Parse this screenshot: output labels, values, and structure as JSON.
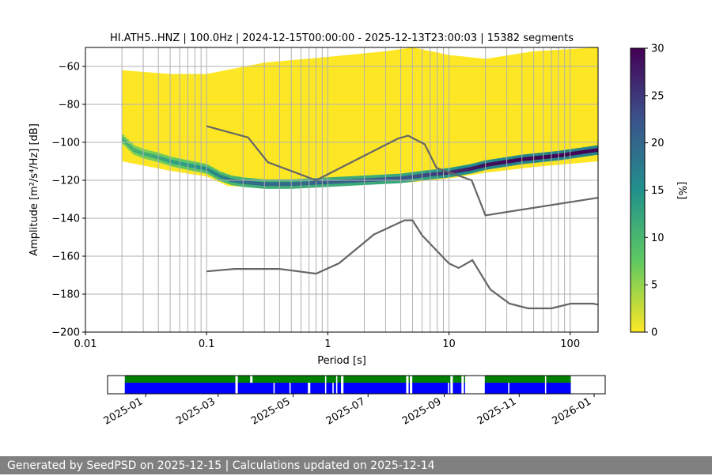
{
  "title": "HI.ATH5..HNZ | 100.0Hz | 2024-12-15T00:00:00 - 2025-12-13T23:00:03 | 15382 segments",
  "footer": "Generated by SeedPSD on 2025-12-15 | Calculations updated on 2025-12-14",
  "colors": {
    "noise_model": "#666666",
    "grid": "#b0b0b0",
    "availability_upper": "#008000",
    "availability_lower": "#0000ff"
  },
  "chart_data": [
    {
      "type": "heatmap",
      "title": "HI.ATH5..HNZ | 100.0Hz | 2024-12-15T00:00:00 - 2025-12-13T23:00:03 | 15382 segments",
      "xlabel": "Period [s]",
      "ylabel": "Amplitude [m²/s⁴/Hz] [dB]",
      "x_scale": "log",
      "xlim": [
        0.01,
        170
      ],
      "ylim": [
        -200,
        -50
      ],
      "x_ticks": [
        {
          "value": 0.01,
          "label": "0.01"
        },
        {
          "value": 0.1,
          "label": "0.1"
        },
        {
          "value": 1,
          "label": "1"
        },
        {
          "value": 10,
          "label": "10"
        },
        {
          "value": 100,
          "label": "100"
        }
      ],
      "y_ticks": [
        {
          "value": -60,
          "label": "−60"
        },
        {
          "value": -80,
          "label": "−80"
        },
        {
          "value": -100,
          "label": "−100"
        },
        {
          "value": -120,
          "label": "−120"
        },
        {
          "value": -140,
          "label": "−140"
        },
        {
          "value": -160,
          "label": "−160"
        },
        {
          "value": -180,
          "label": "−180"
        },
        {
          "value": -200,
          "label": "−200"
        }
      ],
      "grid_periods": [
        0.02,
        0.03,
        0.04,
        0.05,
        0.06,
        0.07,
        0.08,
        0.09,
        0.1,
        0.2,
        0.3,
        0.4,
        0.5,
        0.6,
        0.7,
        0.8,
        0.9,
        1,
        2,
        3,
        4,
        5,
        6,
        7,
        8,
        9,
        10,
        20,
        30,
        40,
        50,
        60,
        70,
        80,
        90,
        100
      ],
      "grid": true,
      "colorbar": {
        "label": "[%]",
        "range": [
          0,
          30
        ],
        "ticks": [
          {
            "value": 0,
            "label": "0"
          },
          {
            "value": 5,
            "label": "5"
          },
          {
            "value": 10,
            "label": "10"
          },
          {
            "value": 15,
            "label": "15"
          },
          {
            "value": 20,
            "label": "20"
          },
          {
            "value": 25,
            "label": "25"
          },
          {
            "value": 30,
            "label": "30"
          }
        ],
        "colormap": [
          "#fde725",
          "#5ec962",
          "#21918c",
          "#3b528b",
          "#440154"
        ]
      },
      "mode_curve": [
        {
          "period": 0.02,
          "db": -98,
          "pct": 12
        },
        {
          "period": 0.025,
          "db": -104,
          "pct": 11
        },
        {
          "period": 0.03,
          "db": -106,
          "pct": 11
        },
        {
          "period": 0.04,
          "db": -108,
          "pct": 12
        },
        {
          "period": 0.05,
          "db": -110,
          "pct": 13
        },
        {
          "period": 0.07,
          "db": -112,
          "pct": 14
        },
        {
          "period": 0.1,
          "db": -114,
          "pct": 16
        },
        {
          "period": 0.13,
          "db": -118,
          "pct": 17
        },
        {
          "period": 0.16,
          "db": -120,
          "pct": 18
        },
        {
          "period": 0.2,
          "db": -121,
          "pct": 19
        },
        {
          "period": 0.3,
          "db": -122,
          "pct": 20
        },
        {
          "period": 0.5,
          "db": -122,
          "pct": 20
        },
        {
          "period": 1,
          "db": -121,
          "pct": 21
        },
        {
          "period": 2,
          "db": -120,
          "pct": 21
        },
        {
          "period": 4,
          "db": -119,
          "pct": 22
        },
        {
          "period": 7,
          "db": -117,
          "pct": 24
        },
        {
          "period": 10,
          "db": -116,
          "pct": 26
        },
        {
          "period": 15,
          "db": -114,
          "pct": 28
        },
        {
          "period": 20,
          "db": -112,
          "pct": 29
        },
        {
          "period": 40,
          "db": -109,
          "pct": 30
        },
        {
          "period": 80,
          "db": -107,
          "pct": 30
        },
        {
          "period": 170,
          "db": -104,
          "pct": 30
        }
      ],
      "spread_upper": [
        {
          "period": 0.02,
          "db": -62
        },
        {
          "period": 0.05,
          "db": -64
        },
        {
          "period": 0.1,
          "db": -64
        },
        {
          "period": 0.3,
          "db": -58
        },
        {
          "period": 1,
          "db": -55
        },
        {
          "period": 3,
          "db": -52
        },
        {
          "period": 5,
          "db": -50
        },
        {
          "period": 10,
          "db": -54
        },
        {
          "period": 20,
          "db": -56
        },
        {
          "period": 50,
          "db": -52
        },
        {
          "period": 170,
          "db": -50
        }
      ],
      "spread_lower": [
        {
          "period": 0.02,
          "db": -110
        },
        {
          "period": 0.05,
          "db": -115
        },
        {
          "period": 0.1,
          "db": -118
        },
        {
          "period": 0.15,
          "db": -123
        },
        {
          "period": 0.3,
          "db": -124
        },
        {
          "period": 1,
          "db": -123
        },
        {
          "period": 5,
          "db": -121
        },
        {
          "period": 10,
          "db": -119
        },
        {
          "period": 20,
          "db": -116
        },
        {
          "period": 50,
          "db": -113
        },
        {
          "period": 170,
          "db": -110
        }
      ],
      "series": [
        {
          "role": "high_noise_model",
          "points": [
            {
              "period": 0.1,
              "db": -91.5
            },
            {
              "period": 0.22,
              "db": -97.4
            },
            {
              "period": 0.32,
              "db": -110.5
            },
            {
              "period": 0.8,
              "db": -120.0
            },
            {
              "period": 3.8,
              "db": -98.0
            },
            {
              "period": 4.6,
              "db": -96.5
            },
            {
              "period": 6.3,
              "db": -101.0
            },
            {
              "period": 7.9,
              "db": -113.5
            },
            {
              "period": 15.4,
              "db": -120.0
            },
            {
              "period": 20,
              "db": -138.5
            },
            {
              "period": 354.8,
              "db": -126.0
            }
          ]
        },
        {
          "role": "low_noise_model",
          "points": [
            {
              "period": 0.1,
              "db": -168.0
            },
            {
              "period": 0.17,
              "db": -166.7
            },
            {
              "period": 0.4,
              "db": -166.7
            },
            {
              "period": 0.8,
              "db": -169.2
            },
            {
              "period": 1.24,
              "db": -163.7
            },
            {
              "period": 2.4,
              "db": -148.6
            },
            {
              "period": 4.3,
              "db": -141.1
            },
            {
              "period": 5.0,
              "db": -141.1
            },
            {
              "period": 6.0,
              "db": -149.0
            },
            {
              "period": 10.0,
              "db": -163.8
            },
            {
              "period": 12.0,
              "db": -166.2
            },
            {
              "period": 15.6,
              "db": -162.1
            },
            {
              "period": 21.9,
              "db": -177.5
            },
            {
              "period": 31.6,
              "db": -185.0
            },
            {
              "period": 45,
              "db": -187.5
            },
            {
              "period": 70,
              "db": -187.5
            },
            {
              "period": 101,
              "db": -185.0
            },
            {
              "period": 154,
              "db": -185.0
            },
            {
              "period": 170,
              "db": -185.5
            }
          ]
        }
      ]
    },
    {
      "type": "availability",
      "xlim": [
        "2024-12-01",
        "2026-01-10"
      ],
      "x_ticks": [
        {
          "value": "2025-01-01",
          "label": "2025-01"
        },
        {
          "value": "2025-03-01",
          "label": "2025-03"
        },
        {
          "value": "2025-05-01",
          "label": "2025-05"
        },
        {
          "value": "2025-07-01",
          "label": "2025-07"
        },
        {
          "value": "2025-09-01",
          "label": "2025-09"
        },
        {
          "value": "2025-11-01",
          "label": "2025-11"
        },
        {
          "value": "2026-01-01",
          "label": "2026-01"
        }
      ],
      "upper_segments": [
        [
          "2024-12-15",
          "2025-03-15"
        ],
        [
          "2025-03-17",
          "2025-03-27"
        ],
        [
          "2025-03-29",
          "2025-05-27"
        ],
        [
          "2025-05-28",
          "2025-06-05"
        ],
        [
          "2025-06-06",
          "2025-06-09"
        ],
        [
          "2025-06-11",
          "2025-08-01"
        ],
        [
          "2025-08-03",
          "2025-08-04"
        ],
        [
          "2025-08-06",
          "2025-09-06"
        ],
        [
          "2025-09-08",
          "2025-09-15"
        ],
        [
          "2025-09-17",
          "2025-09-18"
        ],
        [
          "2025-10-04",
          "2025-11-22"
        ],
        [
          "2025-11-23",
          "2025-12-13"
        ]
      ],
      "lower_segments": [
        [
          "2024-12-15",
          "2025-03-15"
        ],
        [
          "2025-03-17",
          "2025-04-15"
        ],
        [
          "2025-04-16",
          "2025-04-28"
        ],
        [
          "2025-04-29",
          "2025-05-13"
        ],
        [
          "2025-05-15",
          "2025-05-27"
        ],
        [
          "2025-05-28",
          "2025-06-02"
        ],
        [
          "2025-06-03",
          "2025-06-05"
        ],
        [
          "2025-06-06",
          "2025-06-09"
        ],
        [
          "2025-06-11",
          "2025-08-01"
        ],
        [
          "2025-08-03",
          "2025-08-04"
        ],
        [
          "2025-08-06",
          "2025-09-04"
        ],
        [
          "2025-09-05",
          "2025-09-06"
        ],
        [
          "2025-09-08",
          "2025-09-15"
        ],
        [
          "2025-09-17",
          "2025-09-18"
        ],
        [
          "2025-10-04",
          "2025-10-23"
        ],
        [
          "2025-10-24",
          "2025-11-22"
        ],
        [
          "2025-11-23",
          "2025-12-13"
        ]
      ]
    }
  ]
}
